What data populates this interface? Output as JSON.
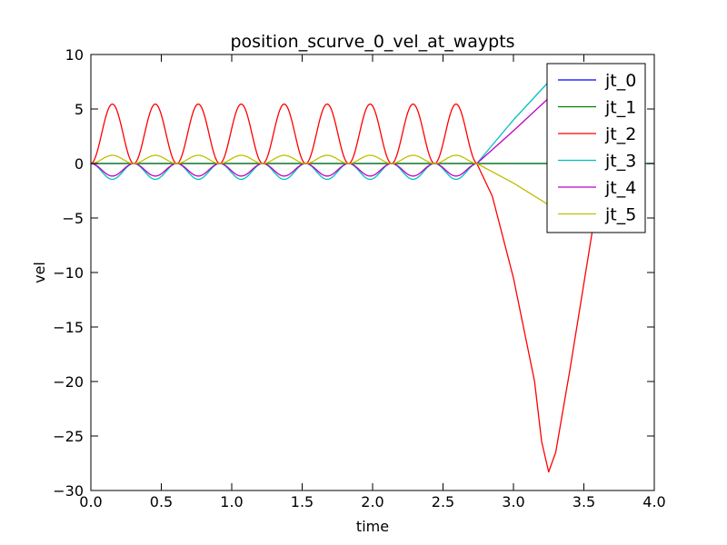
{
  "chart_data": {
    "type": "line",
    "title": "position_scurve_0_vel_at_waypts",
    "xlabel": "time",
    "ylabel": "vel",
    "xlim": [
      0.0,
      4.0
    ],
    "ylim": [
      -30,
      10
    ],
    "x_ticks": [
      0.0,
      0.5,
      1.0,
      1.5,
      2.0,
      2.5,
      3.0,
      3.5,
      4.0
    ],
    "x_tick_labels": [
      "0.0",
      "0.5",
      "1.0",
      "1.5",
      "2.0",
      "2.5",
      "3.0",
      "3.5",
      "4.0"
    ],
    "y_ticks": [
      10,
      5,
      0,
      -5,
      -10,
      -15,
      -20,
      -25,
      -30
    ],
    "y_tick_labels": [
      "10",
      "5",
      "0",
      "−5",
      "−10",
      "−15",
      "−20",
      "−25",
      "−30"
    ],
    "grid": false,
    "legend_position": "top-right",
    "series": [
      {
        "name": "jt_0",
        "color": "#0000ff",
        "oscillation_amplitude": 0.0,
        "oscillation_period": 0.305,
        "oscillation_end": 2.74,
        "segments": [
          [
            2.74,
            0.0
          ],
          [
            4.0,
            0.0
          ]
        ]
      },
      {
        "name": "jt_1",
        "color": "#008000",
        "oscillation_amplitude": 0.0,
        "oscillation_period": 0.305,
        "oscillation_end": 2.74,
        "segments": [
          [
            2.74,
            0.0
          ],
          [
            4.0,
            0.0
          ]
        ]
      },
      {
        "name": "jt_2",
        "color": "#ff0000",
        "oscillation_amplitude": 5.45,
        "oscillation_period": 0.305,
        "oscillation_end": 2.74,
        "segments": [
          [
            2.74,
            0.0
          ],
          [
            2.85,
            -3.0
          ],
          [
            3.0,
            -10.5
          ],
          [
            3.15,
            -20.0
          ],
          [
            3.2,
            -25.5
          ],
          [
            3.25,
            -28.3
          ],
          [
            3.3,
            -26.5
          ],
          [
            3.4,
            -19.0
          ],
          [
            3.5,
            -11.0
          ],
          [
            3.6,
            -3.0
          ],
          [
            3.7,
            4.0
          ]
        ]
      },
      {
        "name": "jt_3",
        "color": "#00bfbf",
        "oscillation_amplitude": -1.45,
        "oscillation_period": 0.305,
        "oscillation_end": 2.74,
        "segments": [
          [
            2.74,
            0.0
          ],
          [
            3.0,
            4.0
          ],
          [
            3.25,
            7.5
          ],
          [
            3.4,
            8.0
          ]
        ]
      },
      {
        "name": "jt_4",
        "color": "#bf00bf",
        "oscillation_amplitude": -1.15,
        "oscillation_period": 0.305,
        "oscillation_end": 2.74,
        "segments": [
          [
            2.74,
            0.0
          ],
          [
            3.0,
            3.0
          ],
          [
            3.25,
            6.0
          ],
          [
            3.4,
            6.5
          ]
        ]
      },
      {
        "name": "jt_5",
        "color": "#bfbf00",
        "oscillation_amplitude": 0.75,
        "oscillation_period": 0.305,
        "oscillation_end": 2.74,
        "segments": [
          [
            2.74,
            0.0
          ],
          [
            3.0,
            -1.8
          ],
          [
            3.25,
            -3.8
          ],
          [
            3.4,
            -4.0
          ]
        ]
      }
    ]
  }
}
